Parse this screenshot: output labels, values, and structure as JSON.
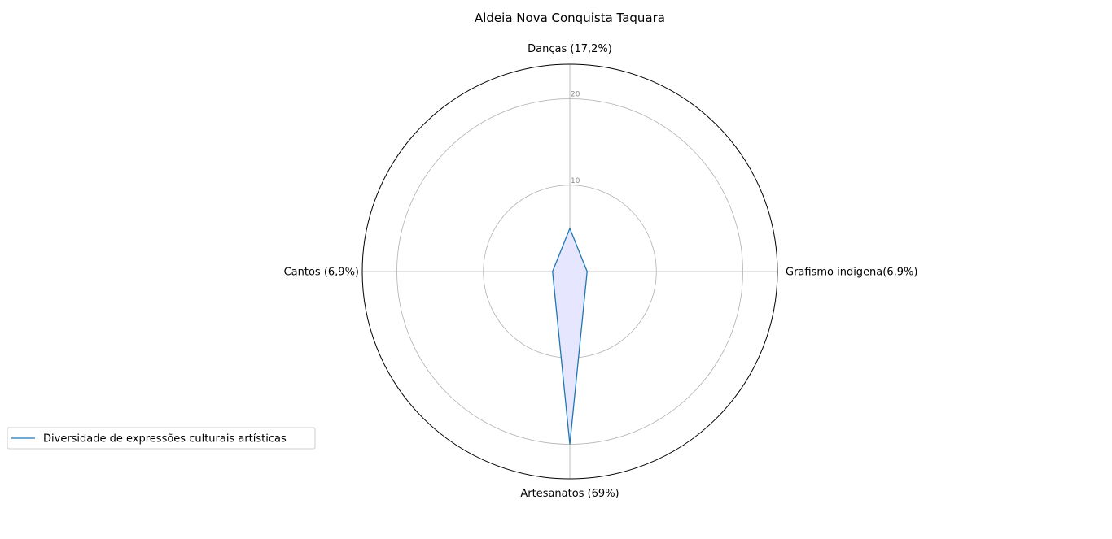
{
  "chart_data": {
    "type": "radar",
    "title": "Aldeia Nova Conquista Taquara",
    "categories": [
      "Danças (17,2%)",
      "Grafismo indigena(6,9%)",
      "Artesanatos (69%)",
      "Cantos (6,9%)"
    ],
    "series": [
      {
        "name": "Diversidade de expressões culturais artísticas",
        "values": [
          5,
          2,
          20,
          2
        ],
        "color": "#1f77b4",
        "fill": "#e6e6ff"
      }
    ],
    "r_ticks": [
      10,
      20
    ],
    "r_tick_labels": [
      "10",
      "20"
    ],
    "rlim": [
      0,
      24
    ],
    "grid": true,
    "legend_position": "lower-left"
  }
}
